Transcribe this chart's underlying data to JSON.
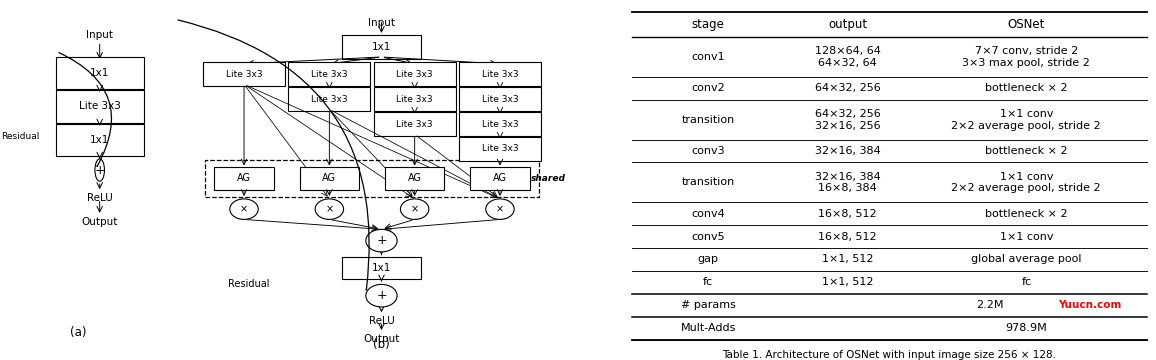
{
  "table_data": {
    "col_headers": [
      "stage",
      "output",
      "OSNet"
    ],
    "rows": [
      [
        "conv1",
        "128×64, 64\n64×32, 64",
        "7×7 conv, stride 2\n3×3 max pool, stride 2"
      ],
      [
        "conv2",
        "64×32, 256",
        "bottleneck × 2"
      ],
      [
        "transition",
        "64×32, 256\n32×16, 256",
        "1×1 conv\n2×2 average pool, stride 2"
      ],
      [
        "conv3",
        "32×16, 384",
        "bottleneck × 2"
      ],
      [
        "transition",
        "32×16, 384\n16×8, 384",
        "1×1 conv\n2×2 average pool, stride 2"
      ],
      [
        "conv4",
        "16×8, 512",
        "bottleneck × 2"
      ],
      [
        "conv5",
        "16×8, 512",
        "1×1 conv"
      ],
      [
        "gap",
        "1×1, 512",
        "global average pool"
      ],
      [
        "fc",
        "1×1, 512",
        "fc"
      ],
      [
        "# params",
        "",
        "2.2M"
      ],
      [
        "Mult-Adds",
        "",
        "978.9M"
      ]
    ],
    "caption": "Table 1. Architecture of OSNet with input image size 256 × 128.",
    "watermark": "Yuucn.com",
    "watermark_color": "#ff0000"
  },
  "bg_color": "#ffffff",
  "text_color": "#000000"
}
